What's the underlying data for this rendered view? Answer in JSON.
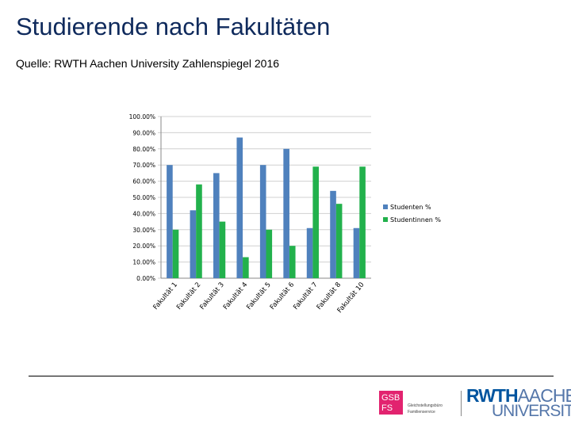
{
  "header": {
    "title": "Studierende nach Fakultäten",
    "source": "Quelle: RWTH Aachen University Zahlenspiegel 2016"
  },
  "colors": {
    "series1": "#4f81bd",
    "series2": "#22b14c",
    "grid": "#d0d0d0",
    "title": "#0f2a5c"
  },
  "chart_data": {
    "type": "bar",
    "title": "",
    "xlabel": "",
    "ylabel": "",
    "ylim": [
      0,
      100
    ],
    "ytick_step": 10,
    "yticks": [
      "0.00%",
      "10.00%",
      "20.00%",
      "30.00%",
      "40.00%",
      "50.00%",
      "60.00%",
      "70.00%",
      "80.00%",
      "90.00%",
      "100.00%"
    ],
    "legend_position": "right",
    "categories": [
      "Fakultät 1",
      "Fakultät 2",
      "Fakultät 3",
      "Fakultät 4",
      "Fakultät 5",
      "Fakultät 6",
      "Fakultät 7",
      "Fakultät 8",
      "Fakultät 10"
    ],
    "series": [
      {
        "name": "Studenten %",
        "values": [
          70,
          42,
          65,
          87,
          70,
          80,
          31,
          54,
          31
        ]
      },
      {
        "name": "Studentinnen %",
        "values": [
          30,
          58,
          35,
          13,
          30,
          20,
          69,
          46,
          69
        ]
      }
    ]
  },
  "footer": {
    "gsb_line1": "GSB",
    "gsb_line2": "FS",
    "gsb_sub1": "Gleichstellungsbüro",
    "gsb_sub2": "Familienservice",
    "rwth_bold": "RWTH",
    "rwth_light": "AACHEN",
    "university": "UNIVERSITY"
  }
}
